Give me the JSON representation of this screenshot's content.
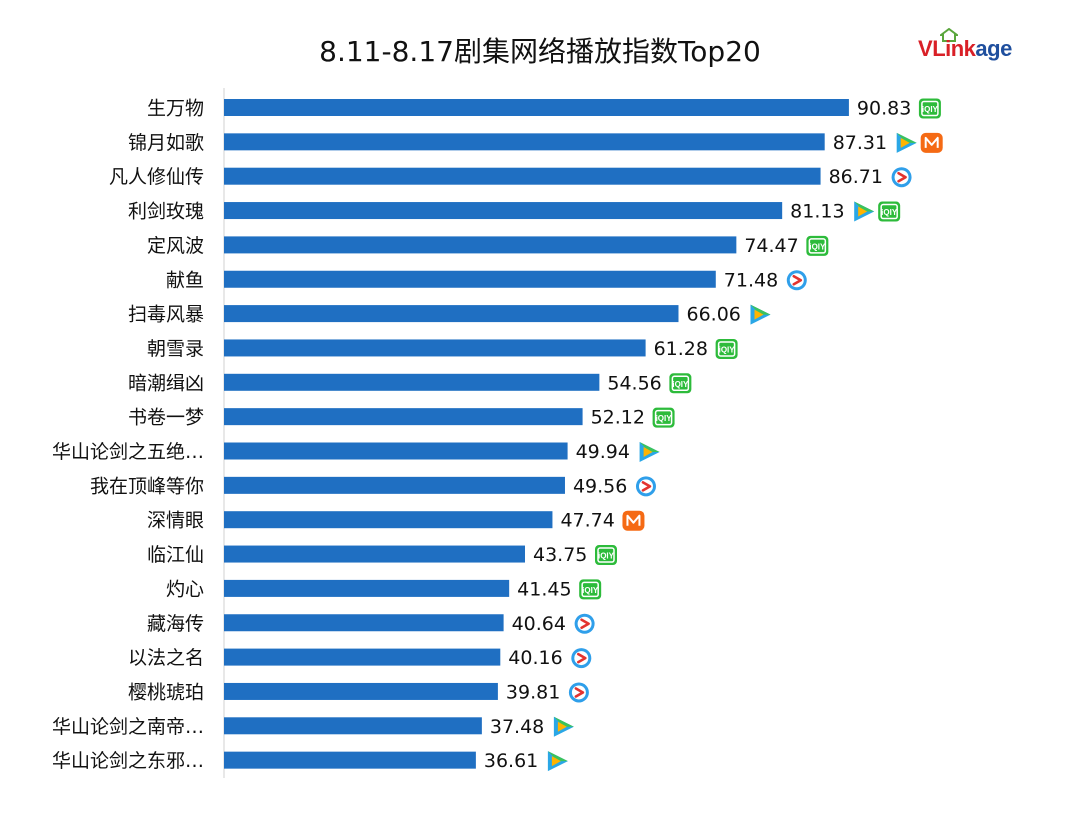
{
  "chart_data": {
    "type": "bar",
    "orientation": "horizontal",
    "title": "8.11-8.17剧集网络播放指数Top20",
    "categories": [
      "生万物",
      "锦月如歌",
      "凡人修仙传",
      "利剑玫瑰",
      "定风波",
      "献鱼",
      "扫毒风暴",
      "朝雪录",
      "暗潮缉凶",
      "书卷一梦",
      "华山论剑之五绝…",
      "我在顶峰等你",
      "深情眼",
      "临江仙",
      "灼心",
      "藏海传",
      "以法之名",
      "樱桃琥珀",
      "华山论剑之南帝…",
      "华山论剑之东邪…"
    ],
    "values": [
      90.83,
      87.31,
      86.71,
      81.13,
      74.47,
      71.48,
      66.06,
      61.28,
      54.56,
      52.12,
      49.94,
      49.56,
      47.74,
      43.75,
      41.45,
      40.64,
      40.16,
      39.81,
      37.48,
      36.61
    ],
    "value_labels": [
      "90.83",
      "87.31",
      "86.71",
      "81.13",
      "74.47",
      "71.48",
      "66.06",
      "61.28",
      "54.56",
      "52.12",
      "49.94",
      "49.56",
      "47.74",
      "43.75",
      "41.45",
      "40.64",
      "40.16",
      "39.81",
      "37.48",
      "36.61"
    ],
    "platforms": [
      [
        "iqiyi"
      ],
      [
        "tencent",
        "mango"
      ],
      [
        "youku"
      ],
      [
        "tencent",
        "iqiyi"
      ],
      [
        "iqiyi"
      ],
      [
        "youku"
      ],
      [
        "tencent"
      ],
      [
        "iqiyi"
      ],
      [
        "iqiyi"
      ],
      [
        "iqiyi"
      ],
      [
        "tencent"
      ],
      [
        "youku"
      ],
      [
        "mango"
      ],
      [
        "iqiyi"
      ],
      [
        "iqiyi"
      ],
      [
        "youku"
      ],
      [
        "youku"
      ],
      [
        "youku"
      ],
      [
        "tencent"
      ],
      [
        "tencent"
      ]
    ],
    "xlim": [
      0,
      100
    ],
    "grid": false,
    "legend": "none",
    "bar_color": "#1f6fc2"
  },
  "brand": {
    "logo_v": "V",
    "logo_link": "Link",
    "logo_age": "age",
    "logo_v_color": "#d92027",
    "logo_link_color": "#d92027",
    "logo_age_color": "#1f4f9e",
    "house_color": "#5aa63c"
  },
  "icons": {
    "iqiyi": {
      "name": "iqiyi-icon",
      "text": "iQIY",
      "color": "#2dbb3b"
    },
    "tencent": {
      "name": "tencent-video-icon",
      "colors": [
        "#2aa7e6",
        "#ffb400",
        "#3cc35a"
      ]
    },
    "youku": {
      "name": "youku-icon",
      "color": "#2f9fea",
      "accent": "#e3332f"
    },
    "mango": {
      "name": "mango-tv-icon",
      "color": "#f56a14"
    }
  }
}
